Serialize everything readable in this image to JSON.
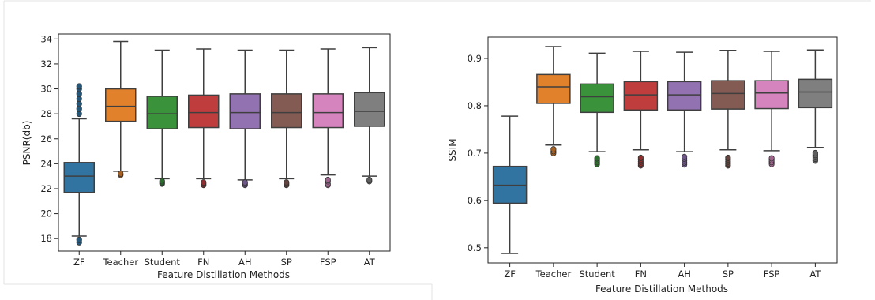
{
  "chart_data": [
    {
      "type": "box",
      "xlabel": "Feature Distillation Methods",
      "ylabel": "PSNR(db)",
      "ylim": [
        17,
        34.4
      ],
      "yticks": [
        "18",
        "20",
        "22",
        "24",
        "26",
        "28",
        "30",
        "32",
        "34"
      ],
      "categories": [
        "ZF",
        "Teacher",
        "Student",
        "FN",
        "AH",
        "SP",
        "FSP",
        "AT"
      ],
      "colors": [
        "#3274a1",
        "#e1812c",
        "#3a923a",
        "#c03d3e",
        "#9372b2",
        "#845b53",
        "#d684bd",
        "#7f7f7f"
      ],
      "boxes": [
        {
          "whislo": 18.2,
          "q1": 21.7,
          "med": 23.0,
          "q3": 24.1,
          "whishi": 27.6,
          "fliers": [
            17.7,
            17.9,
            28.0,
            28.4,
            28.8,
            29.2,
            29.6,
            30.0,
            30.2
          ]
        },
        {
          "whislo": 23.4,
          "q1": 27.4,
          "med": 28.6,
          "q3": 30.0,
          "whishi": 33.8,
          "fliers": [
            23.1,
            23.2
          ]
        },
        {
          "whislo": 22.8,
          "q1": 26.8,
          "med": 28.0,
          "q3": 29.4,
          "whishi": 33.1,
          "fliers": [
            22.4,
            22.5,
            22.6
          ]
        },
        {
          "whislo": 22.8,
          "q1": 26.9,
          "med": 28.1,
          "q3": 29.5,
          "whishi": 33.2,
          "fliers": [
            22.3,
            22.4,
            22.5
          ]
        },
        {
          "whislo": 22.7,
          "q1": 26.8,
          "med": 28.1,
          "q3": 29.6,
          "whishi": 33.1,
          "fliers": [
            22.3,
            22.4,
            22.5
          ]
        },
        {
          "whislo": 22.8,
          "q1": 26.9,
          "med": 28.1,
          "q3": 29.6,
          "whishi": 33.1,
          "fliers": [
            22.3,
            22.4,
            22.5
          ]
        },
        {
          "whislo": 23.1,
          "q1": 26.9,
          "med": 28.1,
          "q3": 29.6,
          "whishi": 33.2,
          "fliers": [
            22.3,
            22.4,
            22.6,
            22.7
          ]
        },
        {
          "whislo": 23.0,
          "q1": 27.0,
          "med": 28.2,
          "q3": 29.7,
          "whishi": 33.3,
          "fliers": [
            22.6,
            22.7
          ]
        }
      ]
    },
    {
      "type": "box",
      "xlabel": "Feature Distillation Methods",
      "ylabel": "SSIM",
      "ylim": [
        0.468,
        0.945
      ],
      "yticks": [
        "0.5",
        "0.6",
        "0.7",
        "0.8",
        "0.9"
      ],
      "categories": [
        "ZF",
        "Teacher",
        "Student",
        "FN",
        "AH",
        "SP",
        "FSP",
        "AT"
      ],
      "colors": [
        "#3274a1",
        "#e1812c",
        "#3a923a",
        "#c03d3e",
        "#9372b2",
        "#845b53",
        "#d684bd",
        "#7f7f7f"
      ],
      "boxes": [
        {
          "whislo": 0.488,
          "q1": 0.594,
          "med": 0.632,
          "q3": 0.672,
          "whishi": 0.778,
          "fliers": []
        },
        {
          "whislo": 0.717,
          "q1": 0.805,
          "med": 0.84,
          "q3": 0.866,
          "whishi": 0.925,
          "fliers": [
            0.7,
            0.704,
            0.708
          ]
        },
        {
          "whislo": 0.703,
          "q1": 0.786,
          "med": 0.819,
          "q3": 0.846,
          "whishi": 0.911,
          "fliers": [
            0.677,
            0.681,
            0.685,
            0.689
          ]
        },
        {
          "whislo": 0.707,
          "q1": 0.791,
          "med": 0.823,
          "q3": 0.851,
          "whishi": 0.915,
          "fliers": [
            0.674,
            0.678,
            0.682,
            0.686,
            0.69
          ]
        },
        {
          "whislo": 0.703,
          "q1": 0.791,
          "med": 0.823,
          "q3": 0.851,
          "whishi": 0.913,
          "fliers": [
            0.676,
            0.68,
            0.684,
            0.688,
            0.692
          ]
        },
        {
          "whislo": 0.707,
          "q1": 0.793,
          "med": 0.826,
          "q3": 0.853,
          "whishi": 0.917,
          "fliers": [
            0.674,
            0.678,
            0.682,
            0.686,
            0.69
          ]
        },
        {
          "whislo": 0.705,
          "q1": 0.794,
          "med": 0.827,
          "q3": 0.853,
          "whishi": 0.915,
          "fliers": [
            0.677,
            0.681,
            0.685,
            0.689
          ]
        },
        {
          "whislo": 0.712,
          "q1": 0.796,
          "med": 0.829,
          "q3": 0.856,
          "whishi": 0.918,
          "fliers": [
            0.684,
            0.688,
            0.692,
            0.696,
            0.7
          ]
        }
      ]
    }
  ]
}
